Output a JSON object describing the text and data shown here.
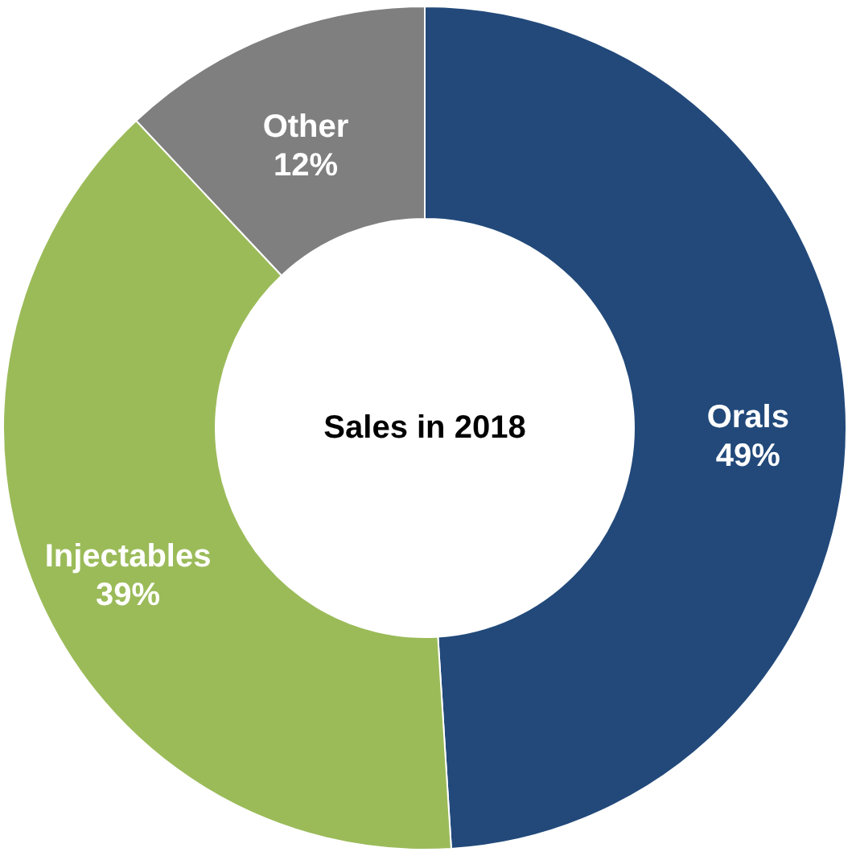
{
  "chart_data": {
    "type": "donut",
    "categories": [
      "Orals",
      "Injectables",
      "Other"
    ],
    "values": [
      49,
      39,
      12
    ],
    "colors": [
      "#22497a",
      "#9bbb59",
      "#7f7f7f"
    ],
    "value_labels": [
      "49%",
      "39%",
      "12%"
    ],
    "annotations": [
      "Sales in 2018"
    ],
    "legend": false
  }
}
